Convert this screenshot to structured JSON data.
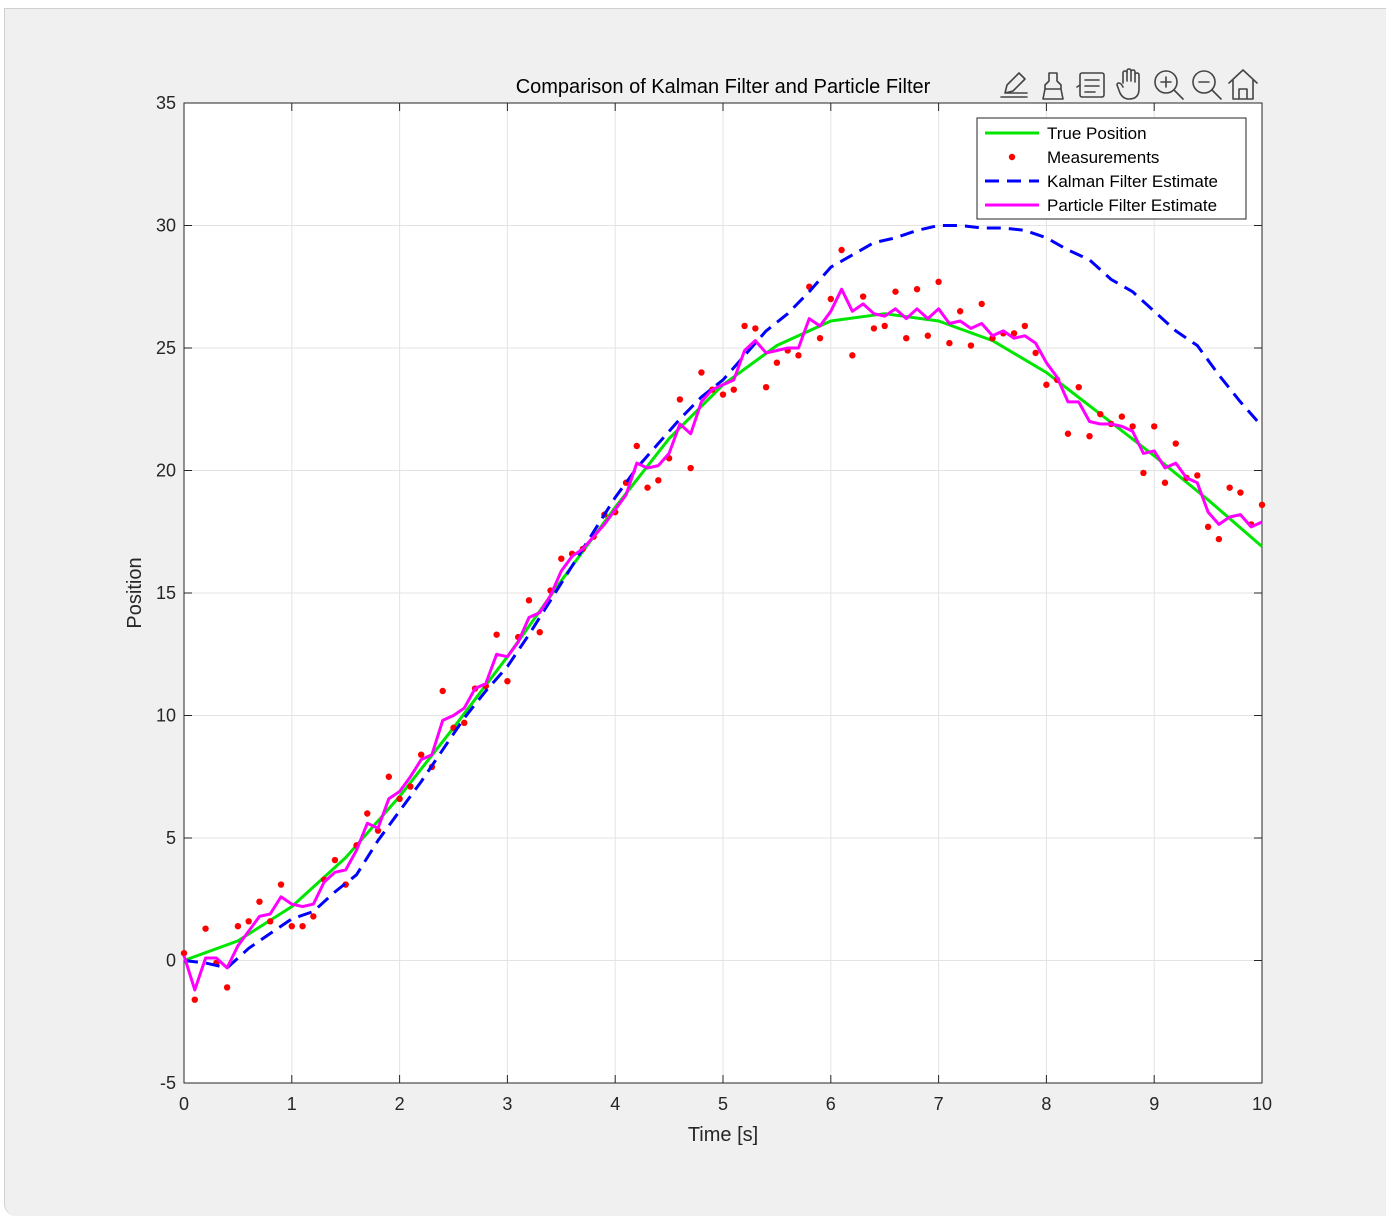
{
  "figure": {
    "toolbar_icons": [
      "edit-plot-icon",
      "brush-icon",
      "data-tips-icon",
      "pan-icon",
      "zoom-in-icon",
      "zoom-out-icon",
      "home-icon"
    ],
    "side_text_colors": [
      "#000000",
      "#1a7f1a",
      "#7a1fd6"
    ]
  },
  "chart_data": {
    "type": "line",
    "title": "Comparison of Kalman Filter and Particle Filter",
    "xlabel": "Time [s]",
    "ylabel": "Position",
    "xlim": [
      0,
      10
    ],
    "ylim": [
      -5,
      35
    ],
    "xticks": [
      0,
      1,
      2,
      3,
      4,
      5,
      6,
      7,
      8,
      9,
      10
    ],
    "yticks": [
      -5,
      0,
      5,
      10,
      15,
      20,
      25,
      30,
      35
    ],
    "grid": true,
    "legend_position": "top-right",
    "series": [
      {
        "name": "True Position",
        "style": "solid",
        "color": "#00e600",
        "x": [
          0,
          0.5,
          1,
          1.5,
          2,
          2.5,
          3,
          3.5,
          4,
          4.5,
          5,
          5.5,
          6,
          6.5,
          7,
          7.5,
          8,
          8.5,
          9,
          9.5,
          10
        ],
        "y": [
          0,
          0.8,
          2.2,
          4.2,
          6.7,
          9.5,
          12.4,
          15.5,
          18.5,
          21.3,
          23.5,
          25.1,
          26.1,
          26.4,
          26.1,
          25.3,
          24.0,
          22.3,
          20.6,
          18.8,
          16.9
        ]
      },
      {
        "name": "Measurements",
        "style": "markers",
        "color": "#ff0000",
        "x": [
          0.0,
          0.1,
          0.2,
          0.3,
          0.4,
          0.5,
          0.6,
          0.7,
          0.8,
          0.9,
          1.0,
          1.1,
          1.2,
          1.3,
          1.4,
          1.5,
          1.6,
          1.7,
          1.8,
          1.9,
          2.0,
          2.1,
          2.2,
          2.3,
          2.4,
          2.5,
          2.6,
          2.7,
          2.8,
          2.9,
          3.0,
          3.1,
          3.2,
          3.3,
          3.4,
          3.5,
          3.6,
          3.7,
          3.8,
          3.9,
          4.0,
          4.1,
          4.2,
          4.3,
          4.4,
          4.5,
          4.6,
          4.7,
          4.8,
          4.9,
          5.0,
          5.1,
          5.2,
          5.3,
          5.4,
          5.5,
          5.6,
          5.7,
          5.8,
          5.9,
          6.0,
          6.1,
          6.2,
          6.3,
          6.4,
          6.5,
          6.6,
          6.7,
          6.8,
          6.9,
          7.0,
          7.1,
          7.2,
          7.3,
          7.4,
          7.5,
          7.6,
          7.7,
          7.8,
          7.9,
          8.0,
          8.1,
          8.2,
          8.3,
          8.4,
          8.5,
          8.6,
          8.7,
          8.8,
          8.9,
          9.0,
          9.1,
          9.2,
          9.3,
          9.4,
          9.5,
          9.6,
          9.7,
          9.8,
          9.9,
          10.0
        ],
        "y": [
          0.3,
          -1.6,
          1.3,
          -0.1,
          -1.1,
          1.4,
          1.6,
          2.4,
          1.6,
          3.1,
          1.4,
          1.4,
          1.8,
          3.3,
          4.1,
          3.1,
          4.7,
          6.0,
          5.3,
          7.5,
          6.6,
          7.1,
          8.4,
          7.9,
          11.0,
          9.5,
          9.7,
          11.1,
          11.2,
          13.3,
          11.4,
          13.2,
          14.7,
          13.4,
          15.1,
          16.4,
          16.6,
          16.8,
          17.3,
          18.2,
          18.3,
          19.5,
          21.0,
          19.3,
          19.6,
          20.5,
          22.9,
          20.1,
          24.0,
          23.3,
          23.1,
          23.3,
          25.9,
          25.8,
          23.4,
          24.4,
          24.9,
          24.7,
          27.5,
          25.4,
          27.0,
          29.0,
          24.7,
          27.1,
          25.8,
          25.9,
          27.3,
          25.4,
          27.4,
          25.5,
          27.7,
          25.2,
          26.5,
          25.1,
          26.8,
          25.4,
          25.6,
          25.6,
          25.9,
          24.8,
          23.5,
          23.7,
          21.5,
          23.4,
          21.4,
          22.3,
          21.9,
          22.2,
          21.8,
          19.9,
          21.8,
          19.5,
          21.1,
          19.7,
          19.8,
          17.7,
          17.2,
          19.3,
          19.1,
          17.8,
          18.6
        ]
      },
      {
        "name": "Kalman Filter Estimate",
        "style": "dashed",
        "color": "#0000ff",
        "x": [
          0.0,
          0.2,
          0.4,
          0.6,
          0.8,
          1.0,
          1.2,
          1.4,
          1.6,
          1.8,
          2.0,
          2.2,
          2.4,
          2.6,
          2.8,
          3.0,
          3.2,
          3.4,
          3.6,
          3.8,
          4.0,
          4.2,
          4.4,
          4.6,
          4.8,
          5.0,
          5.2,
          5.4,
          5.6,
          5.8,
          6.0,
          6.2,
          6.4,
          6.6,
          6.8,
          7.0,
          7.2,
          7.4,
          7.6,
          7.8,
          8.0,
          8.2,
          8.4,
          8.6,
          8.8,
          9.0,
          9.2,
          9.4,
          9.6,
          9.8,
          10.0
        ],
        "y": [
          0.0,
          -0.1,
          -0.3,
          0.5,
          1.1,
          1.7,
          2.0,
          2.8,
          3.5,
          4.9,
          6.1,
          7.3,
          8.6,
          9.9,
          11.0,
          12.0,
          13.3,
          14.7,
          16.1,
          17.5,
          18.9,
          20.1,
          21.1,
          22.1,
          23.0,
          23.7,
          24.7,
          25.7,
          26.4,
          27.3,
          28.3,
          28.8,
          29.3,
          29.5,
          29.8,
          30.0,
          30.0,
          29.9,
          29.9,
          29.8,
          29.5,
          29.0,
          28.6,
          27.8,
          27.3,
          26.5,
          25.7,
          25.1,
          23.9,
          22.8,
          21.8
        ]
      },
      {
        "name": "Particle Filter Estimate",
        "style": "solid",
        "color": "#ff00ff",
        "x": [
          0.0,
          0.1,
          0.2,
          0.3,
          0.4,
          0.5,
          0.6,
          0.7,
          0.8,
          0.9,
          1.0,
          1.1,
          1.2,
          1.3,
          1.4,
          1.5,
          1.6,
          1.7,
          1.8,
          1.9,
          2.0,
          2.1,
          2.2,
          2.3,
          2.4,
          2.5,
          2.6,
          2.7,
          2.8,
          2.9,
          3.0,
          3.1,
          3.2,
          3.3,
          3.4,
          3.5,
          3.6,
          3.7,
          3.8,
          3.9,
          4.0,
          4.1,
          4.2,
          4.3,
          4.4,
          4.5,
          4.6,
          4.7,
          4.8,
          4.9,
          5.0,
          5.1,
          5.2,
          5.3,
          5.4,
          5.5,
          5.6,
          5.7,
          5.8,
          5.9,
          6.0,
          6.1,
          6.2,
          6.3,
          6.4,
          6.5,
          6.6,
          6.7,
          6.8,
          6.9,
          7.0,
          7.1,
          7.2,
          7.3,
          7.4,
          7.5,
          7.6,
          7.7,
          7.8,
          7.9,
          8.0,
          8.1,
          8.2,
          8.3,
          8.4,
          8.5,
          8.6,
          8.7,
          8.8,
          8.9,
          9.0,
          9.1,
          9.2,
          9.3,
          9.4,
          9.5,
          9.6,
          9.7,
          9.8,
          9.9,
          10.0
        ],
        "y": [
          0.2,
          -1.2,
          0.1,
          0.1,
          -0.3,
          0.6,
          1.2,
          1.8,
          1.9,
          2.6,
          2.3,
          2.2,
          2.3,
          3.2,
          3.6,
          3.7,
          4.5,
          5.6,
          5.4,
          6.6,
          6.9,
          7.5,
          8.2,
          8.4,
          9.8,
          10.0,
          10.3,
          11.1,
          11.3,
          12.5,
          12.4,
          13.0,
          14.0,
          14.2,
          14.9,
          15.9,
          16.5,
          16.8,
          17.3,
          17.8,
          18.4,
          19.0,
          20.3,
          20.1,
          20.2,
          20.7,
          21.9,
          21.5,
          22.8,
          23.3,
          23.5,
          23.7,
          24.9,
          25.3,
          24.8,
          24.9,
          25.0,
          25.0,
          26.2,
          25.9,
          26.5,
          27.4,
          26.5,
          26.8,
          26.4,
          26.3,
          26.6,
          26.2,
          26.6,
          26.2,
          26.6,
          26.0,
          26.1,
          25.8,
          26.0,
          25.5,
          25.7,
          25.4,
          25.5,
          25.2,
          24.4,
          23.8,
          22.8,
          22.8,
          22.0,
          21.9,
          21.9,
          21.8,
          21.6,
          20.7,
          20.8,
          20.1,
          20.3,
          19.7,
          19.5,
          18.3,
          17.8,
          18.1,
          18.2,
          17.7,
          17.9
        ]
      }
    ]
  }
}
